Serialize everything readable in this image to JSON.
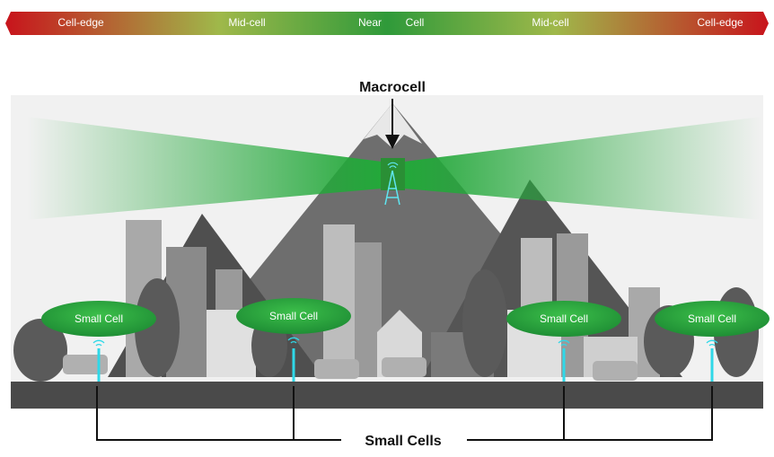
{
  "top_bar": {
    "labels": [
      "Cell-edge",
      "Mid-cell",
      "Near",
      "Cell",
      "Mid-cell",
      "Cell-edge"
    ]
  },
  "macrocell": {
    "label": "Macrocell"
  },
  "small_cells": {
    "labels": [
      "Small Cell",
      "Small Cell",
      "Small Cell",
      "Small Cell"
    ],
    "caption": "Small Cells"
  }
}
